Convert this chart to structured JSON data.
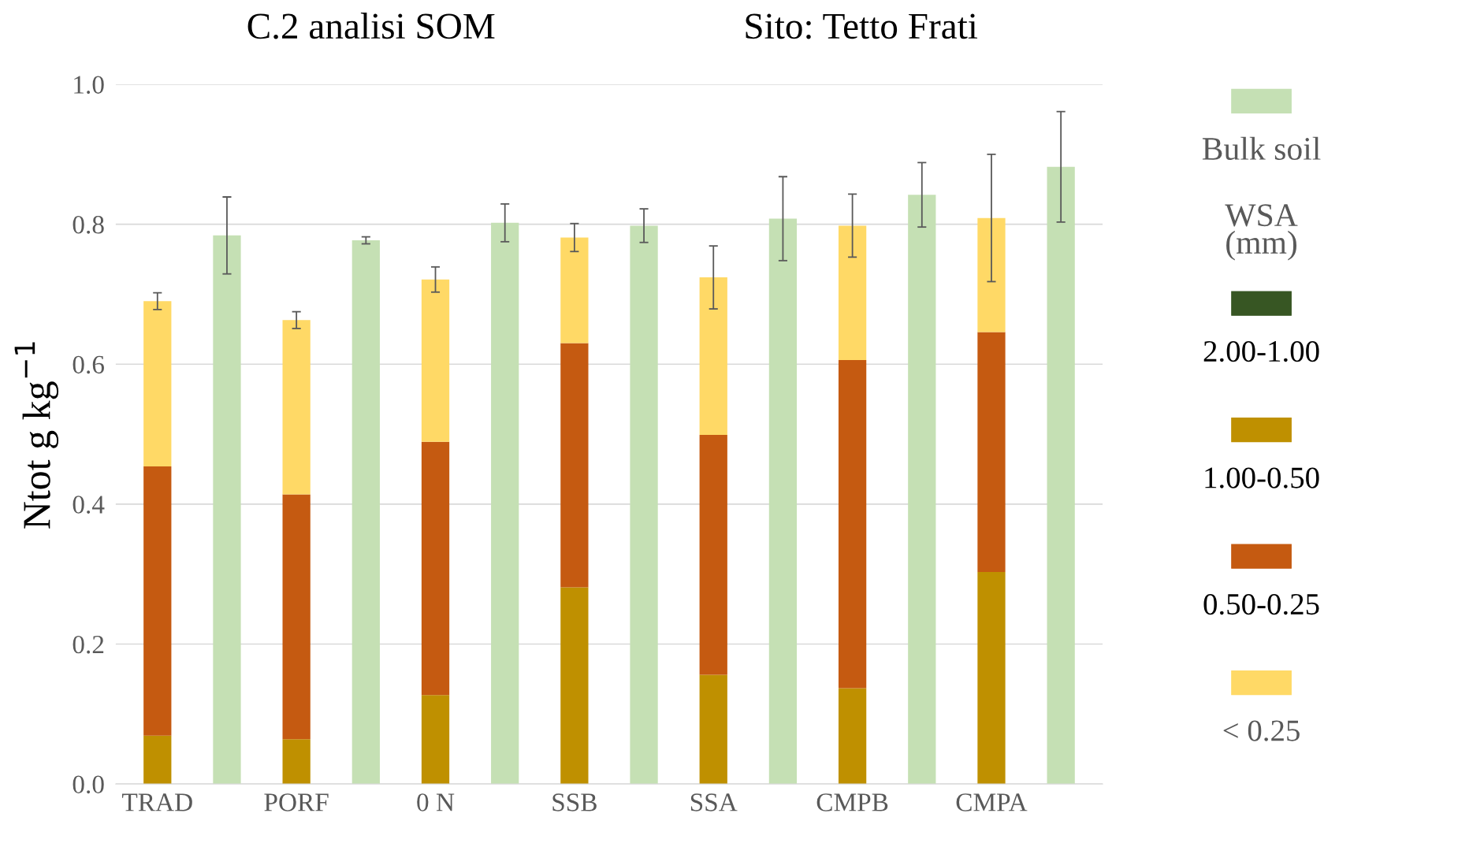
{
  "chart_data": {
    "type": "bar",
    "stacked": true,
    "title": "C.2 analisi SOM",
    "subtitle": "Sito: Tetto Frati",
    "ylabel": "Ntot g kg$^{−1}$",
    "legend_title": "WSA (mm)",
    "categories": [
      "TRAD",
      null,
      "PORF",
      null,
      "0 N",
      null,
      "SSB",
      null,
      "SSA",
      null,
      "CMPB",
      null,
      "CMPA",
      null
    ],
    "series": [
      {
        "name": "Bulk soil",
        "color": "#c5e0b4",
        "values": [
          null,
          0.784,
          null,
          0.777,
          null,
          0.802,
          null,
          0.798,
          null,
          0.808,
          null,
          0.842,
          null,
          0.882
        ],
        "errors": [
          null,
          0.055,
          null,
          0.005,
          null,
          0.027,
          null,
          0.024,
          null,
          0.06,
          null,
          0.046,
          null,
          0.079
        ]
      },
      {
        "name": "2.00-1.00",
        "color": "#375623",
        "values": [
          0,
          null,
          0,
          null,
          0,
          null,
          0,
          null,
          0,
          null,
          0,
          null,
          0,
          null
        ]
      },
      {
        "name": "1.00-0.50",
        "color": "#bf9000",
        "values": [
          0.069,
          null,
          0.064,
          null,
          0.127,
          null,
          0.281,
          null,
          0.156,
          null,
          0.137,
          null,
          0.303,
          null
        ]
      },
      {
        "name": "0.50-0.25",
        "color": "#c55a11",
        "values": [
          0.385,
          null,
          0.35,
          null,
          0.362,
          null,
          0.349,
          null,
          0.343,
          null,
          0.469,
          null,
          0.343,
          null
        ]
      },
      {
        "name": "< 0.25",
        "color": "#ffd966",
        "values": [
          0.236,
          null,
          0.249,
          null,
          0.232,
          null,
          0.151,
          null,
          0.225,
          null,
          0.192,
          null,
          0.163,
          null
        ],
        "errors": [
          0.012,
          null,
          0.012,
          null,
          0.018,
          null,
          0.02,
          null,
          0.045,
          null,
          0.045,
          null,
          0.091,
          null
        ]
      }
    ],
    "ylim": [
      0,
      1.0
    ],
    "yticks": [
      {
        "value": 0,
        "label": "0.0"
      },
      {
        "value": 0.2,
        "label": "0.2"
      },
      {
        "value": 0.4,
        "label": "0.4"
      },
      {
        "value": 0.6,
        "label": "0.6"
      },
      {
        "value": 0.8,
        "label": "0.8"
      },
      {
        "value": 1.0,
        "label": "1.0"
      }
    ],
    "grid": "y",
    "legend": "right"
  }
}
